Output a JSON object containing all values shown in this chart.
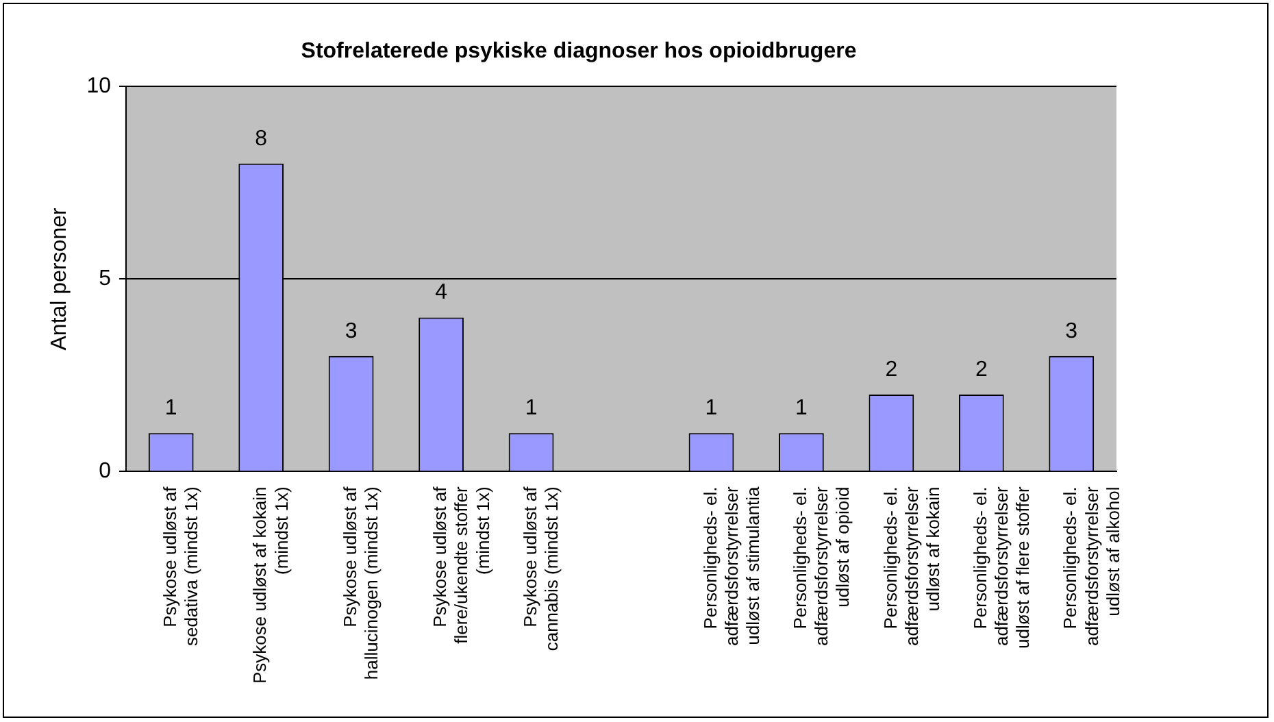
{
  "chart_data": {
    "type": "bar",
    "title": "Stofrelaterede psykiske diagnoser hos opioidbrugere",
    "ylabel": "Antal personer",
    "categories": [
      "Psykose udløst af sedativa (mindst 1x)",
      "Psykose udløst af kokain (mindst 1x)",
      "Psykose udløst af hallucinogen (mindst 1x)",
      "Psykose udløst af flere/ukendte stoffer (mindst 1x)",
      "Psykose udløst af cannabis (mindst 1x)",
      null,
      "Personligheds- el. adfærdsforstyrrelser udløst af stimulantia",
      "Personligheds- el. adfærdsforstyrrelser udløst af opioid",
      "Personligheds- el. adfærdsforstyrrelser udløst af kokain",
      "Personligheds- el. adfærdsforstyrrelser udløst af flere stoffer",
      "Personligheds- el. adfærdsforstyrrelser udløst af alkohol"
    ],
    "values": [
      1,
      8,
      3,
      4,
      1,
      null,
      1,
      1,
      2,
      2,
      3
    ],
    "color": "#9999ff",
    "ylim": [
      0,
      10
    ],
    "yticks": [
      0,
      5,
      10
    ],
    "grid": "y",
    "data_labels": true
  }
}
